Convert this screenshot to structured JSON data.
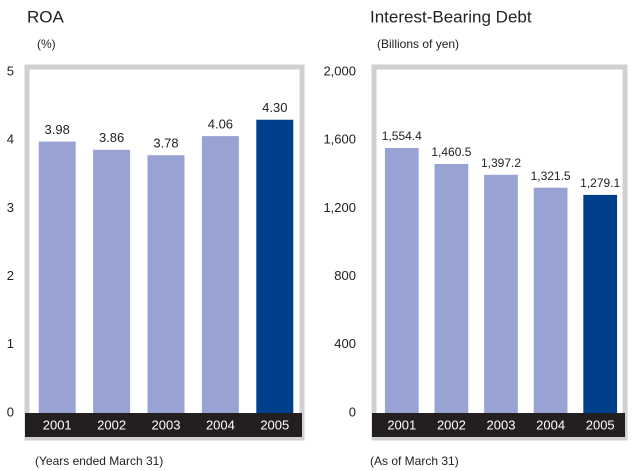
{
  "chart_data": [
    {
      "type": "bar",
      "title": "ROA",
      "subtitle": "(%)",
      "note": "(Years ended March 31)",
      "categories": [
        "2001",
        "2002",
        "2003",
        "2004",
        "2005"
      ],
      "values": [
        3.98,
        3.86,
        3.78,
        4.06,
        4.3
      ],
      "value_labels": [
        "3.98",
        "3.86",
        "3.78",
        "4.06",
        "4.30"
      ],
      "colors": [
        "#98a3d3",
        "#98a3d3",
        "#98a3d3",
        "#98a3d3",
        "#003f8c"
      ],
      "ylim": [
        0,
        5
      ],
      "yticks": [
        0,
        1,
        2,
        3,
        4,
        5
      ]
    },
    {
      "type": "bar",
      "title": "Interest-Bearing Debt",
      "subtitle": "(Billions of yen)",
      "note": "(As of March 31)",
      "categories": [
        "2001",
        "2002",
        "2003",
        "2004",
        "2005"
      ],
      "values": [
        1554.4,
        1460.5,
        1397.2,
        1321.5,
        1279.1
      ],
      "value_labels": [
        "1,554.4",
        "1,460.5",
        "1,397.2",
        "1,321.5",
        "1,279.1"
      ],
      "colors": [
        "#98a3d3",
        "#98a3d3",
        "#98a3d3",
        "#98a3d3",
        "#003f8c"
      ],
      "ylim": [
        0,
        2000
      ],
      "yticks": [
        0,
        400,
        800,
        {
          "value": 1200,
          "label": "1,200"
        },
        {
          "value": 1600,
          "label": "1,600"
        },
        {
          "value": 2000,
          "label": "2,000"
        }
      ]
    }
  ]
}
